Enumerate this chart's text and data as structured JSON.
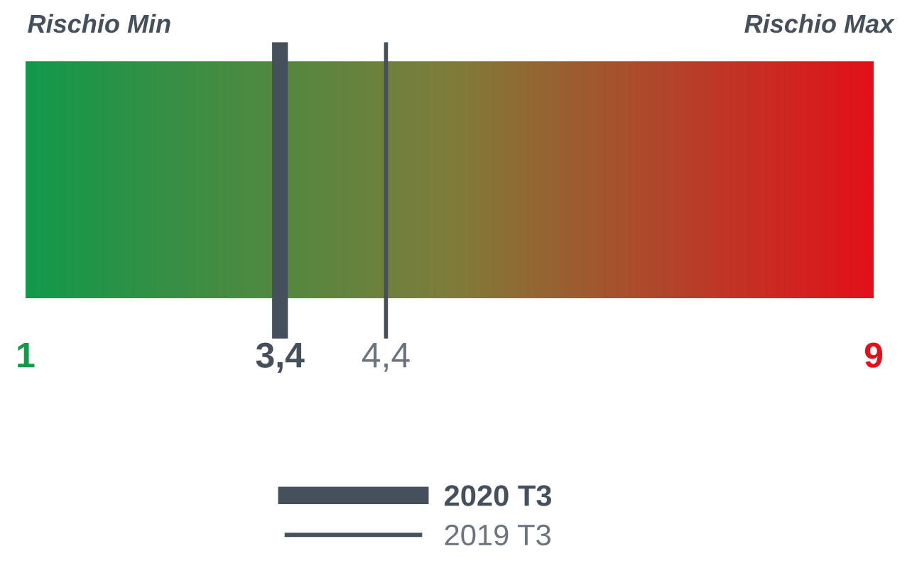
{
  "chart_data": {
    "type": "bar",
    "orientation": "horizontal",
    "categories": [
      null
    ],
    "base": [
      1
    ],
    "values": [
      8
    ],
    "colors": [
      "#7f7d3a"
    ],
    "xlim": [
      1,
      9
    ],
    "xticks": [
      1,
      {
        "value": 3.4,
        "label": "3,4"
      },
      {
        "value": 4.4,
        "label": "4,4"
      },
      9
    ],
    "ref_lines": [
      {
        "axis": "x",
        "value": 3.4,
        "label": "2020 T3",
        "color": "#45505c"
      },
      {
        "axis": "x",
        "value": 4.4,
        "label": "2019 T3",
        "color": "#45505c"
      }
    ],
    "annotations": [
      "Rischio Min",
      "Rischio Max"
    ],
    "legend": "bottom"
  }
}
